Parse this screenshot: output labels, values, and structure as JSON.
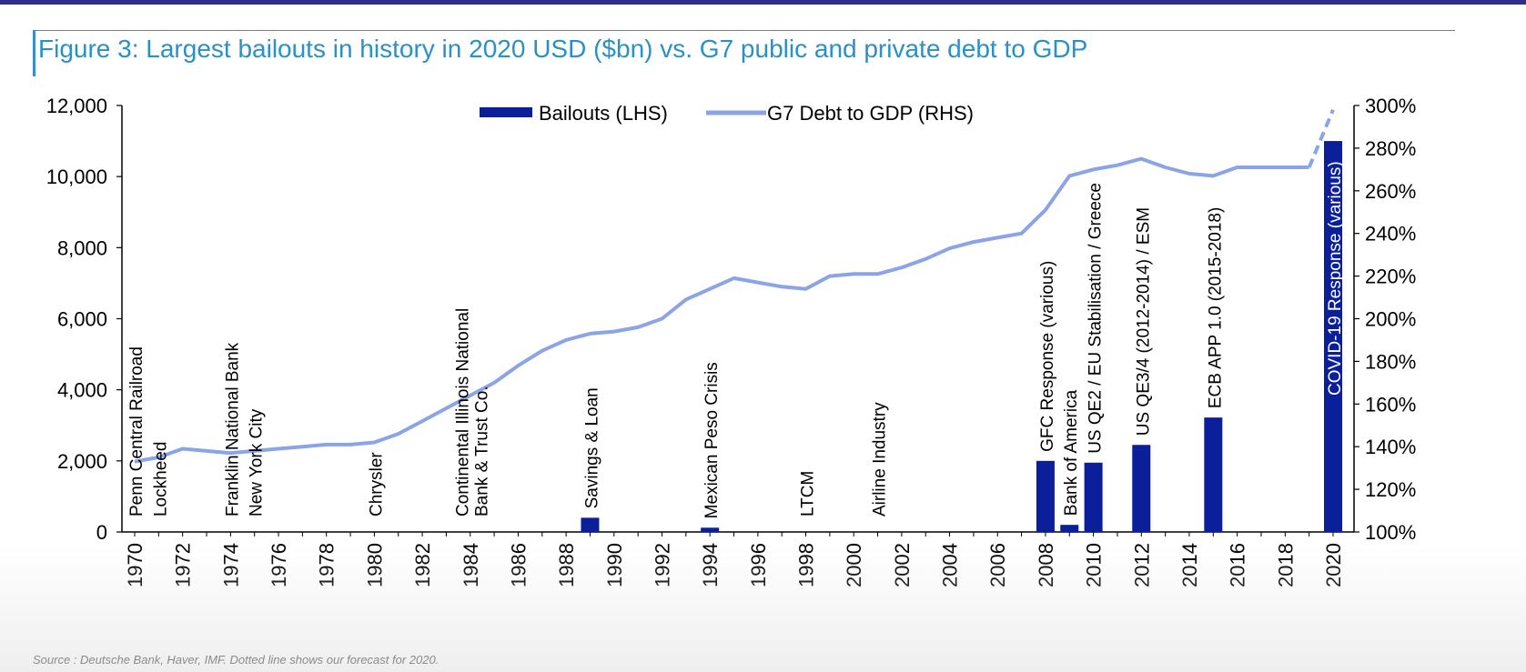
{
  "title": "Figure 3: Largest bailouts in history in 2020 USD ($bn) vs. G7 public and private debt to GDP",
  "source": "Source : Deutsche Bank, Haver, IMF. Dotted line shows our forecast for 2020.",
  "colors": {
    "bar": "#0b1f9b",
    "line": "#8ba4e6",
    "title": "#2a90c8",
    "rule": "#2d2f8a"
  },
  "chart_data": {
    "type": "bar",
    "title": "Figure 3: Largest bailouts in history in 2020 USD ($bn) vs. G7 public and private debt to GDP",
    "xlabel": "",
    "ylabel": "",
    "y2label": "",
    "x_range": [
      1970,
      2020
    ],
    "ylim": [
      0,
      12000
    ],
    "y2lim": [
      100,
      300
    ],
    "x_ticks": [
      "1970",
      "1972",
      "1974",
      "1976",
      "1978",
      "1980",
      "1982",
      "1984",
      "1986",
      "1988",
      "1990",
      "1992",
      "1994",
      "1996",
      "1998",
      "2000",
      "2002",
      "2004",
      "2006",
      "2008",
      "2010",
      "2012",
      "2014",
      "2016",
      "2018",
      "2020"
    ],
    "y_ticks": [
      "0",
      "2,000",
      "4,000",
      "6,000",
      "8,000",
      "10,000",
      "12,000"
    ],
    "y2_ticks": [
      "100%",
      "120%",
      "140%",
      "160%",
      "180%",
      "200%",
      "220%",
      "240%",
      "260%",
      "280%",
      "300%"
    ],
    "legend": [
      {
        "name": "Bailouts (LHS)",
        "kind": "bar"
      },
      {
        "name": "G7 Debt to GDP (RHS)",
        "kind": "line"
      }
    ],
    "legend_position": "top-center",
    "bailouts": [
      {
        "year": 1970,
        "label": "Penn Central Railroad",
        "value": 0
      },
      {
        "year": 1971,
        "label": "Lockheed",
        "value": 0
      },
      {
        "year": 1974,
        "label": "Franklin National Bank",
        "value": 0
      },
      {
        "year": 1975,
        "label": "New York City",
        "value": 0
      },
      {
        "year": 1980,
        "label": "Chrysler",
        "value": 0
      },
      {
        "year": 1984,
        "label": "Continental Illinois National\nBank & Trust Co.",
        "value": 0
      },
      {
        "year": 1989,
        "label": "Savings & Loan",
        "value": 400
      },
      {
        "year": 1994,
        "label": "Mexican Peso Crisis",
        "value": 120
      },
      {
        "year": 1998,
        "label": "LTCM",
        "value": 0
      },
      {
        "year": 2001,
        "label": "Airline Industry",
        "value": 0
      },
      {
        "year": 2008,
        "label": "GFC Response (various)",
        "value": 2000
      },
      {
        "year": 2009,
        "label": "Bank of America",
        "value": 200
      },
      {
        "year": 2010,
        "label": "US QE2 / EU Stabilisation / Greece",
        "value": 1950
      },
      {
        "year": 2012,
        "label": "US QE3/4 (2012-2014) / ESM",
        "value": 2450
      },
      {
        "year": 2015,
        "label": "ECB APP 1.0 (2015-2018)",
        "value": 3220
      },
      {
        "year": 2020,
        "label": "COVID-19 Response (various)",
        "value": 11000
      }
    ],
    "debt_series": {
      "name": "G7 Debt to GDP (RHS)",
      "x": [
        1970,
        1971,
        1972,
        1973,
        1974,
        1975,
        1976,
        1977,
        1978,
        1979,
        1980,
        1981,
        1982,
        1983,
        1984,
        1985,
        1986,
        1987,
        1988,
        1989,
        1990,
        1991,
        1992,
        1993,
        1994,
        1995,
        1996,
        1997,
        1998,
        1999,
        2000,
        2001,
        2002,
        2003,
        2004,
        2005,
        2006,
        2007,
        2008,
        2009,
        2010,
        2011,
        2012,
        2013,
        2014,
        2015,
        2016,
        2017,
        2018,
        2019
      ],
      "y": [
        133,
        135,
        139,
        138,
        137,
        138,
        139,
        140,
        141,
        141,
        142,
        146,
        152,
        158,
        164,
        170,
        178,
        185,
        190,
        193,
        194,
        196,
        200,
        209,
        214,
        219,
        217,
        215,
        214,
        220,
        221,
        221,
        224,
        228,
        233,
        236,
        238,
        240,
        251,
        267,
        270,
        272,
        275,
        271,
        268,
        267,
        271,
        271,
        271,
        271
      ]
    },
    "forecast_series": {
      "name": "Forecast 2020",
      "x": [
        2019,
        2020
      ],
      "y": [
        271,
        298
      ]
    }
  }
}
